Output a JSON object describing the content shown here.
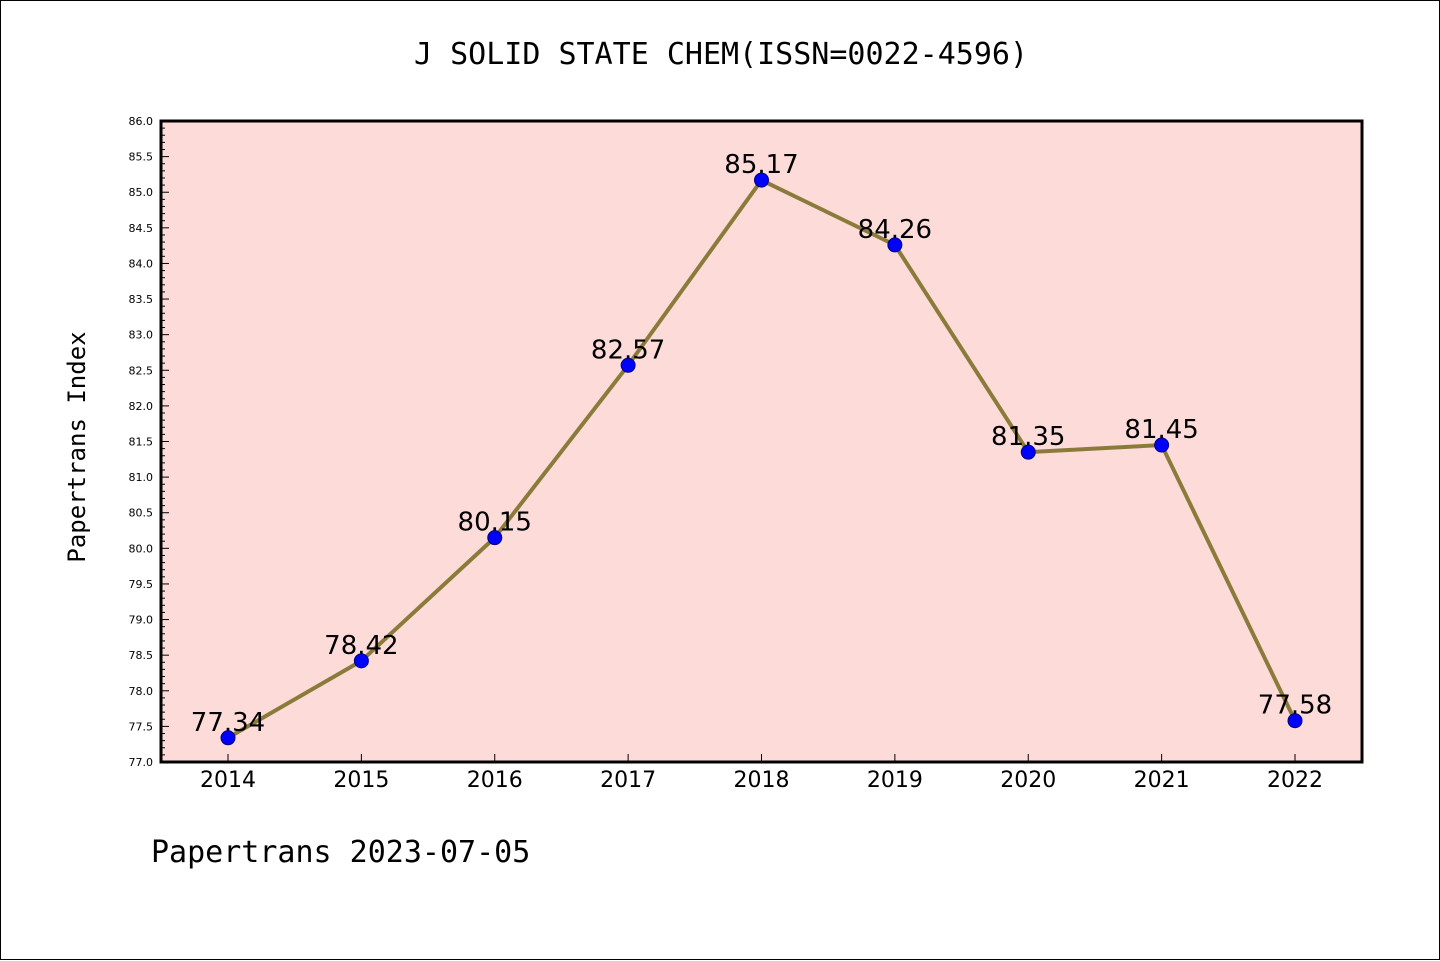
{
  "chart_data": {
    "type": "line",
    "title": "J SOLID STATE CHEM(ISSN=0022-4596)",
    "xlabel": "",
    "ylabel": "Papertrans Index",
    "categories": [
      "2014",
      "2015",
      "2016",
      "2017",
      "2018",
      "2019",
      "2020",
      "2021",
      "2022"
    ],
    "series": [
      {
        "values": [
          77.34,
          78.42,
          80.15,
          82.57,
          85.17,
          84.26,
          81.35,
          81.45,
          77.58
        ]
      }
    ],
    "data_labels": [
      "77.34",
      "78.42",
      "80.15",
      "82.57",
      "85.17",
      "84.26",
      "81.35",
      "81.45",
      "77.58"
    ],
    "ylim": [
      77.0,
      86.0
    ],
    "yticks": [
      "77.0",
      "77.5",
      "78.0",
      "78.5",
      "79.0",
      "79.5",
      "80.0",
      "80.5",
      "81.0",
      "81.5",
      "82.0",
      "82.5",
      "83.0",
      "83.5",
      "84.0",
      "84.5",
      "85.0",
      "85.5",
      "86.0"
    ],
    "grid": false,
    "legend": "none",
    "colors": {
      "plot_background": "#fddbd9",
      "line": "#8b7b3a",
      "marker": "#0000ff",
      "marker_edge": "#000080",
      "frame": "#000000"
    }
  },
  "footer": {
    "text": "Papertrans 2023-07-05"
  }
}
